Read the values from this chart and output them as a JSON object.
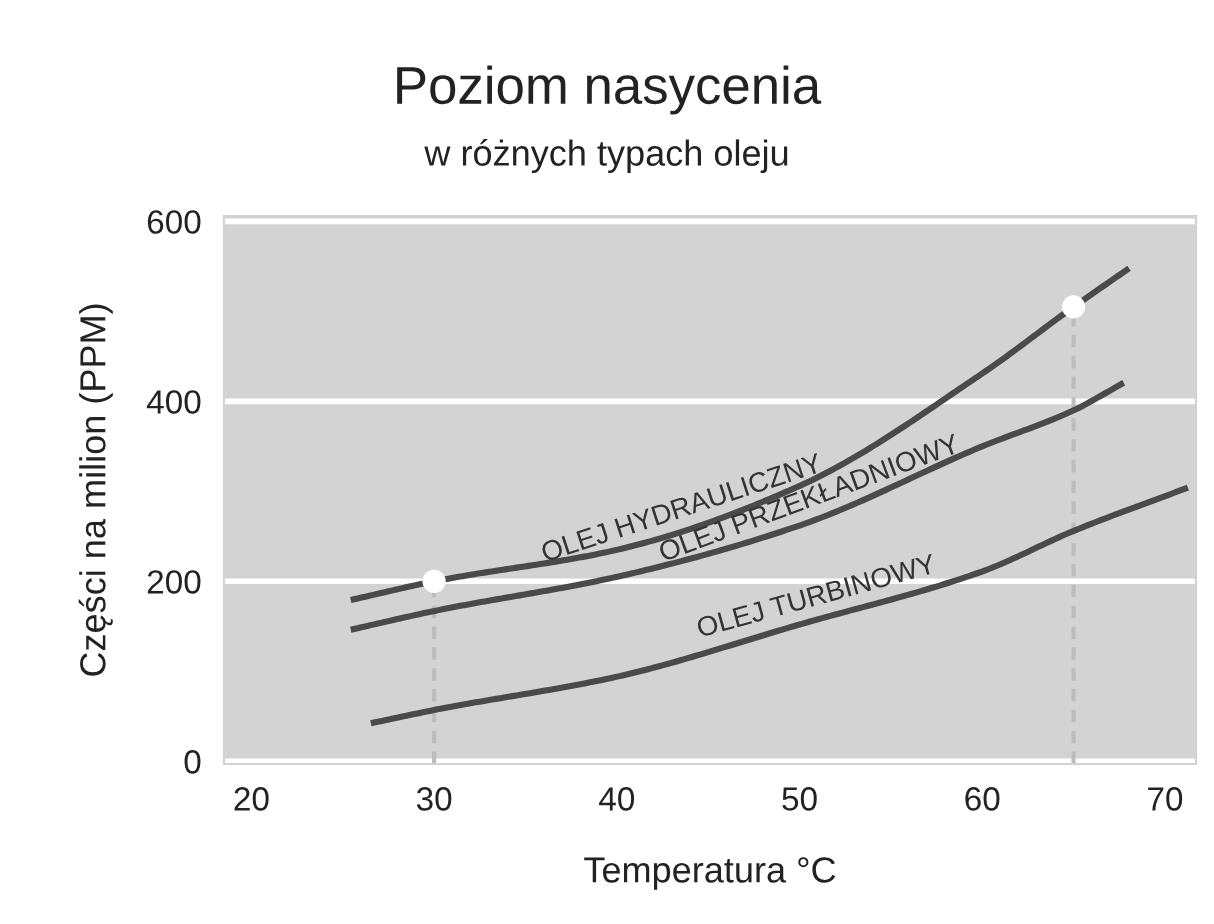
{
  "chart_data": {
    "type": "line",
    "title": "Poziom nasycenia",
    "subtitle": "w różnych typach oleju",
    "xlabel": "Temperatura °C",
    "ylabel": "Części na milion (PPM)",
    "xlim": [
      18.5,
      71.7
    ],
    "xticks": [
      20,
      30,
      40,
      50,
      60,
      70
    ],
    "ylim": [
      -3,
      606
    ],
    "yticks": [
      0,
      200,
      400,
      600
    ],
    "grid": "y",
    "marker": "none",
    "line_style": "solid",
    "legend": false,
    "series": [
      {
        "name": "OLEJ HYDRAULICZNY",
        "color": "#4a4a4a",
        "x": [
          25.6,
          30,
          40,
          50,
          60,
          65,
          67.9
        ],
        "values": [
          180,
          200,
          235,
          306,
          431,
          505,
          546
        ]
      },
      {
        "name": "OLEJ PRZEKŁADNIOWY",
        "color": "#4a4a4a",
        "x": [
          25.6,
          30,
          40,
          50,
          60,
          65,
          67.6
        ],
        "values": [
          147,
          167,
          205,
          262,
          350,
          390,
          419
        ]
      },
      {
        "name": "OLEJ TURBINOWY",
        "color": "#4a4a4a",
        "x": [
          26.7,
          30,
          40,
          50,
          60,
          65,
          71.1
        ],
        "values": [
          43,
          57,
          94,
          152,
          211,
          256,
          303
        ]
      },
      {
        "type": "scatter",
        "color": "#ffffff",
        "x": [
          30,
          65
        ],
        "values": [
          200,
          505
        ],
        "marker": "circle"
      }
    ],
    "ref_lines": [
      {
        "axis": "x",
        "value": 30,
        "color": "#bdbdbd",
        "line_style": "dashed"
      },
      {
        "axis": "x",
        "value": 65,
        "color": "#bdbdbd",
        "line_style": "dashed"
      }
    ]
  }
}
